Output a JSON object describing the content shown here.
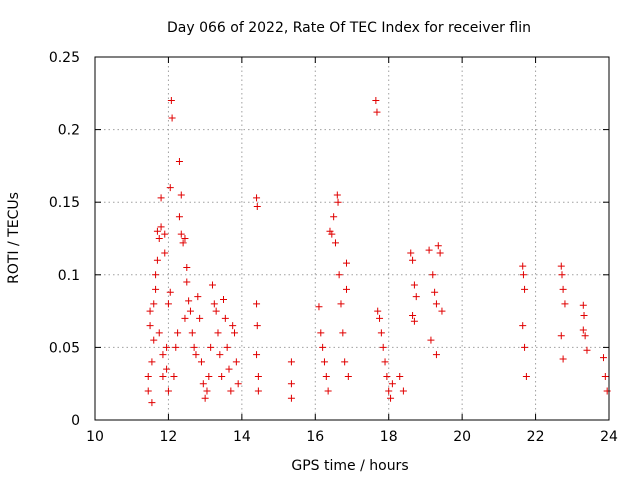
{
  "chart_data": {
    "type": "scatter",
    "title": "Day 066 of 2022, Rate Of TEC Index for receiver flin",
    "xlabel": "GPS time / hours",
    "ylabel": "ROTI / TECUs",
    "xlim": [
      10,
      24
    ],
    "ylim": [
      0,
      0.25
    ],
    "x_ticks": [
      "10",
      "12",
      "14",
      "16",
      "18",
      "20",
      "22",
      "24"
    ],
    "y_ticks": [
      "0",
      "0.05",
      "0.1",
      "0.15",
      "0.2",
      "0.25"
    ],
    "x_tick_values": [
      10,
      12,
      14,
      16,
      18,
      20,
      22,
      24
    ],
    "y_tick_values": [
      0,
      0.05,
      0.1,
      0.15,
      0.2,
      0.25
    ],
    "grid": true,
    "marker": "plus",
    "color": "#e00000",
    "series": [
      {
        "points": [
          [
            11.45,
            0.02
          ],
          [
            11.45,
            0.03
          ],
          [
            11.5,
            0.065
          ],
          [
            11.5,
            0.075
          ],
          [
            11.55,
            0.04
          ],
          [
            11.55,
            0.012
          ],
          [
            11.6,
            0.055
          ],
          [
            11.6,
            0.08
          ],
          [
            11.65,
            0.09
          ],
          [
            11.65,
            0.1
          ],
          [
            11.7,
            0.13
          ],
          [
            11.7,
            0.11
          ],
          [
            11.75,
            0.125
          ],
          [
            11.75,
            0.06
          ],
          [
            11.8,
            0.133
          ],
          [
            11.8,
            0.153
          ],
          [
            11.85,
            0.045
          ],
          [
            11.85,
            0.03
          ],
          [
            11.9,
            0.115
          ],
          [
            11.9,
            0.128
          ],
          [
            11.95,
            0.05
          ],
          [
            11.95,
            0.035
          ],
          [
            12.0,
            0.02
          ],
          [
            12.0,
            0.08
          ],
          [
            12.05,
            0.16
          ],
          [
            12.05,
            0.088
          ],
          [
            12.08,
            0.22
          ],
          [
            12.1,
            0.208
          ],
          [
            12.15,
            0.03
          ],
          [
            12.2,
            0.05
          ],
          [
            12.25,
            0.06
          ],
          [
            12.3,
            0.178
          ],
          [
            12.3,
            0.14
          ],
          [
            12.35,
            0.155
          ],
          [
            12.35,
            0.128
          ],
          [
            12.4,
            0.122
          ],
          [
            12.45,
            0.125
          ],
          [
            12.45,
            0.07
          ],
          [
            12.5,
            0.105
          ],
          [
            12.5,
            0.095
          ],
          [
            12.55,
            0.082
          ],
          [
            12.6,
            0.075
          ],
          [
            12.65,
            0.06
          ],
          [
            12.7,
            0.05
          ],
          [
            12.75,
            0.045
          ],
          [
            12.8,
            0.085
          ],
          [
            12.85,
            0.07
          ],
          [
            12.9,
            0.04
          ],
          [
            12.95,
            0.025
          ],
          [
            13.0,
            0.015
          ],
          [
            13.05,
            0.02
          ],
          [
            13.1,
            0.03
          ],
          [
            13.15,
            0.05
          ],
          [
            13.2,
            0.093
          ],
          [
            13.25,
            0.08
          ],
          [
            13.3,
            0.075
          ],
          [
            13.35,
            0.06
          ],
          [
            13.4,
            0.045
          ],
          [
            13.45,
            0.03
          ],
          [
            13.5,
            0.083
          ],
          [
            13.55,
            0.07
          ],
          [
            13.6,
            0.05
          ],
          [
            13.65,
            0.035
          ],
          [
            13.7,
            0.02
          ],
          [
            13.75,
            0.065
          ],
          [
            13.8,
            0.06
          ],
          [
            13.85,
            0.04
          ],
          [
            13.9,
            0.025
          ],
          [
            14.4,
            0.153
          ],
          [
            14.42,
            0.147
          ],
          [
            14.4,
            0.08
          ],
          [
            14.42,
            0.065
          ],
          [
            14.4,
            0.045
          ],
          [
            14.45,
            0.03
          ],
          [
            14.45,
            0.02
          ],
          [
            15.35,
            0.04
          ],
          [
            15.35,
            0.025
          ],
          [
            15.35,
            0.015
          ],
          [
            16.1,
            0.078
          ],
          [
            16.15,
            0.06
          ],
          [
            16.2,
            0.05
          ],
          [
            16.25,
            0.04
          ],
          [
            16.3,
            0.03
          ],
          [
            16.35,
            0.02
          ],
          [
            16.4,
            0.13
          ],
          [
            16.45,
            0.128
          ],
          [
            16.5,
            0.14
          ],
          [
            16.55,
            0.122
          ],
          [
            16.6,
            0.155
          ],
          [
            16.62,
            0.15
          ],
          [
            16.65,
            0.1
          ],
          [
            16.7,
            0.08
          ],
          [
            16.75,
            0.06
          ],
          [
            16.8,
            0.04
          ],
          [
            16.85,
            0.108
          ],
          [
            16.85,
            0.09
          ],
          [
            16.9,
            0.03
          ],
          [
            17.65,
            0.22
          ],
          [
            17.68,
            0.212
          ],
          [
            17.7,
            0.075
          ],
          [
            17.75,
            0.07
          ],
          [
            17.8,
            0.06
          ],
          [
            17.85,
            0.05
          ],
          [
            17.9,
            0.04
          ],
          [
            17.95,
            0.03
          ],
          [
            18.0,
            0.02
          ],
          [
            18.05,
            0.015
          ],
          [
            18.1,
            0.025
          ],
          [
            18.3,
            0.03
          ],
          [
            18.4,
            0.02
          ],
          [
            18.6,
            0.115
          ],
          [
            18.65,
            0.11
          ],
          [
            18.7,
            0.093
          ],
          [
            18.75,
            0.085
          ],
          [
            18.65,
            0.072
          ],
          [
            18.7,
            0.068
          ],
          [
            19.1,
            0.117
          ],
          [
            19.15,
            0.055
          ],
          [
            19.2,
            0.1
          ],
          [
            19.25,
            0.088
          ],
          [
            19.3,
            0.08
          ],
          [
            19.35,
            0.12
          ],
          [
            19.4,
            0.115
          ],
          [
            19.45,
            0.075
          ],
          [
            19.3,
            0.045
          ],
          [
            21.65,
            0.106
          ],
          [
            21.67,
            0.1
          ],
          [
            21.7,
            0.09
          ],
          [
            21.65,
            0.065
          ],
          [
            21.7,
            0.05
          ],
          [
            21.75,
            0.03
          ],
          [
            22.7,
            0.106
          ],
          [
            22.72,
            0.1
          ],
          [
            22.75,
            0.09
          ],
          [
            22.8,
            0.08
          ],
          [
            22.7,
            0.058
          ],
          [
            22.75,
            0.042
          ],
          [
            23.3,
            0.079
          ],
          [
            23.32,
            0.072
          ],
          [
            23.3,
            0.062
          ],
          [
            23.35,
            0.058
          ],
          [
            23.4,
            0.048
          ],
          [
            23.85,
            0.043
          ],
          [
            23.9,
            0.03
          ],
          [
            23.95,
            0.02
          ]
        ]
      }
    ]
  }
}
